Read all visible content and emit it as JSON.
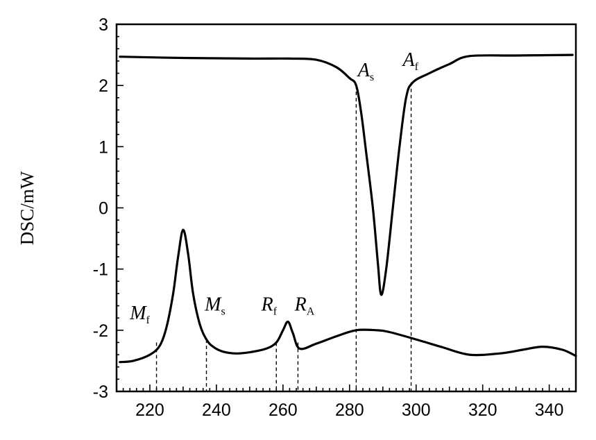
{
  "chart_data": {
    "type": "line",
    "title": "",
    "xlabel": "",
    "ylabel": "DSC/mW",
    "xlim": [
      210,
      348
    ],
    "ylim": [
      -3,
      3
    ],
    "x_ticks": [
      220,
      240,
      260,
      280,
      300,
      320,
      340
    ],
    "y_ticks": [
      3,
      2,
      1,
      0,
      -1,
      -2,
      -3
    ],
    "grid": false,
    "legend": "none",
    "line_color": "#000000",
    "series": [
      {
        "x": [
          211,
          230,
          250,
          262,
          270,
          276,
          280,
          282,
          283.5,
          285,
          287,
          288.5,
          289.5,
          291,
          293,
          295,
          297,
          299,
          304,
          310,
          316,
          330,
          347
        ],
        "y": [
          2.47,
          2.45,
          2.44,
          2.44,
          2.42,
          2.3,
          2.12,
          2.0,
          1.55,
          0.9,
          0.0,
          -0.9,
          -1.42,
          -1.0,
          0.0,
          1.0,
          1.8,
          2.05,
          2.2,
          2.35,
          2.48,
          2.49,
          2.5
        ]
      },
      {
        "x": [
          211,
          215,
          220,
          223,
          225,
          227,
          228.5,
          230,
          231.5,
          233,
          235,
          237,
          239,
          242,
          246,
          250,
          255,
          258,
          260,
          261.5,
          263,
          265,
          270,
          276,
          282,
          288,
          292,
          300,
          308,
          316,
          325,
          332,
          338,
          344,
          348
        ],
        "y": [
          -2.52,
          -2.5,
          -2.4,
          -2.25,
          -1.95,
          -1.4,
          -0.8,
          -0.36,
          -0.75,
          -1.4,
          -1.9,
          -2.15,
          -2.27,
          -2.35,
          -2.38,
          -2.36,
          -2.3,
          -2.2,
          -2.0,
          -1.86,
          -2.05,
          -2.3,
          -2.22,
          -2.1,
          -2.0,
          -2.0,
          -2.03,
          -2.15,
          -2.28,
          -2.4,
          -2.38,
          -2.32,
          -2.27,
          -2.32,
          -2.42
        ]
      }
    ],
    "annotations": [
      {
        "key": "Mf",
        "label": "M",
        "sub": "f",
        "x": 222,
        "ytop": -2.2,
        "label_x": 214,
        "label_y": -1.82
      },
      {
        "key": "Ms",
        "label": "M",
        "sub": "s",
        "x": 237,
        "ytop": -2.15,
        "label_x": 236.5,
        "label_y": -1.68
      },
      {
        "key": "Rf",
        "label": "R",
        "sub": "f",
        "x": 258,
        "ytop": -2.2,
        "label_x": 253.5,
        "label_y": -1.68
      },
      {
        "key": "RA",
        "label": "R",
        "sub": "A",
        "x": 264.5,
        "ytop": -2.2,
        "label_x": 263.5,
        "label_y": -1.68
      },
      {
        "key": "As",
        "label": "A",
        "sub": "s",
        "x": 282,
        "ytop": 2.0,
        "label_x": 282.5,
        "label_y": 2.15
      },
      {
        "key": "Af",
        "label": "A",
        "sub": "f",
        "x": 298.5,
        "ytop": 2.05,
        "label_x": 296,
        "label_y": 2.32
      }
    ]
  }
}
